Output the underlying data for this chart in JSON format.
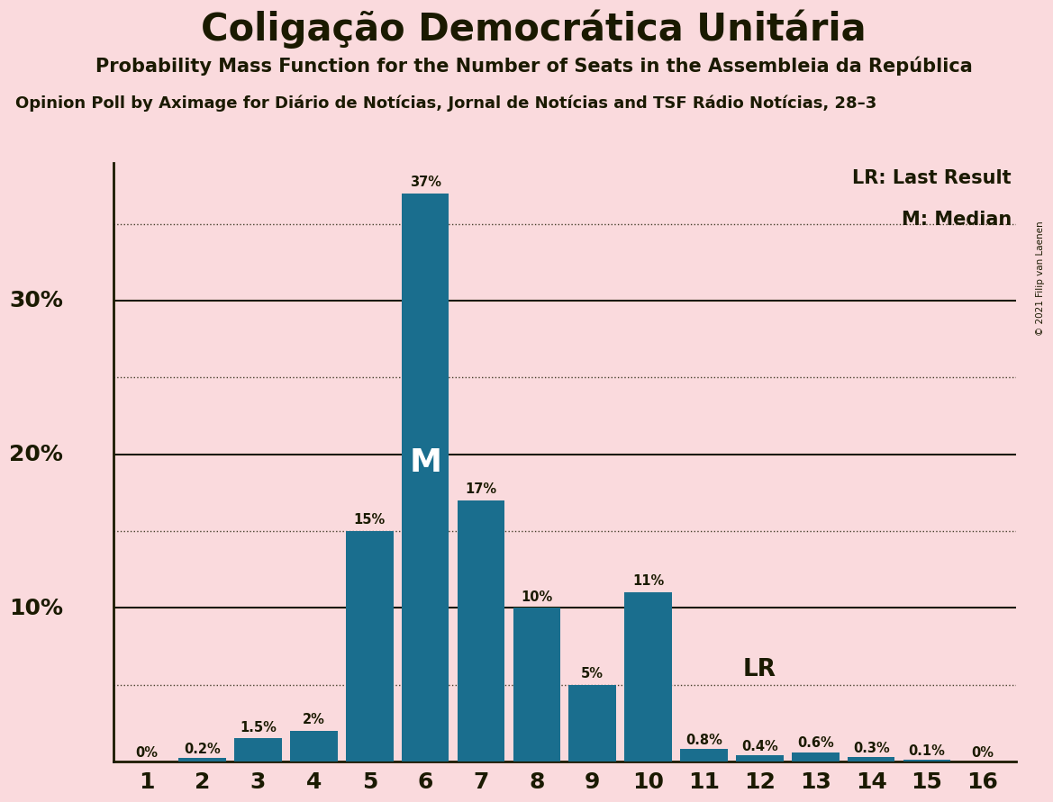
{
  "title": "Coligação Democrática Unitária",
  "subtitle": "Probability Mass Function for the Number of Seats in the Assembleia da República",
  "subtitle2": "Opinion Poll by Aximage for Diário de Notícias, Jornal de Notícias and TSF Rádio Notícias, 28–3",
  "copyright": "© 2021 Filip van Laenen",
  "categories": [
    1,
    2,
    3,
    4,
    5,
    6,
    7,
    8,
    9,
    10,
    11,
    12,
    13,
    14,
    15,
    16
  ],
  "values": [
    0.0,
    0.2,
    1.5,
    2.0,
    15.0,
    37.0,
    17.0,
    10.0,
    5.0,
    11.0,
    0.8,
    0.4,
    0.6,
    0.3,
    0.1,
    0.0
  ],
  "labels": [
    "0%",
    "0.2%",
    "1.5%",
    "2%",
    "15%",
    "37%",
    "17%",
    "10%",
    "5%",
    "11%",
    "0.8%",
    "0.4%",
    "0.6%",
    "0.3%",
    "0.1%",
    "0%"
  ],
  "bar_color": "#1a6e8e",
  "background_color": "#fadadd",
  "text_color": "#1a1a00",
  "title_color": "#1a1a00",
  "median_seat": 6,
  "lr_value": 5.0,
  "lr_label": "LR",
  "median_label": "M",
  "legend_lr": "LR: Last Result",
  "legend_m": "M: Median",
  "ytick_positions": [
    10,
    20,
    30
  ],
  "ytick_labels": [
    "10%",
    "20%",
    "30%"
  ],
  "dotted_lines": [
    5,
    15,
    25,
    35
  ],
  "solid_lines": [
    10,
    20,
    30
  ],
  "ylim": [
    0,
    39
  ]
}
